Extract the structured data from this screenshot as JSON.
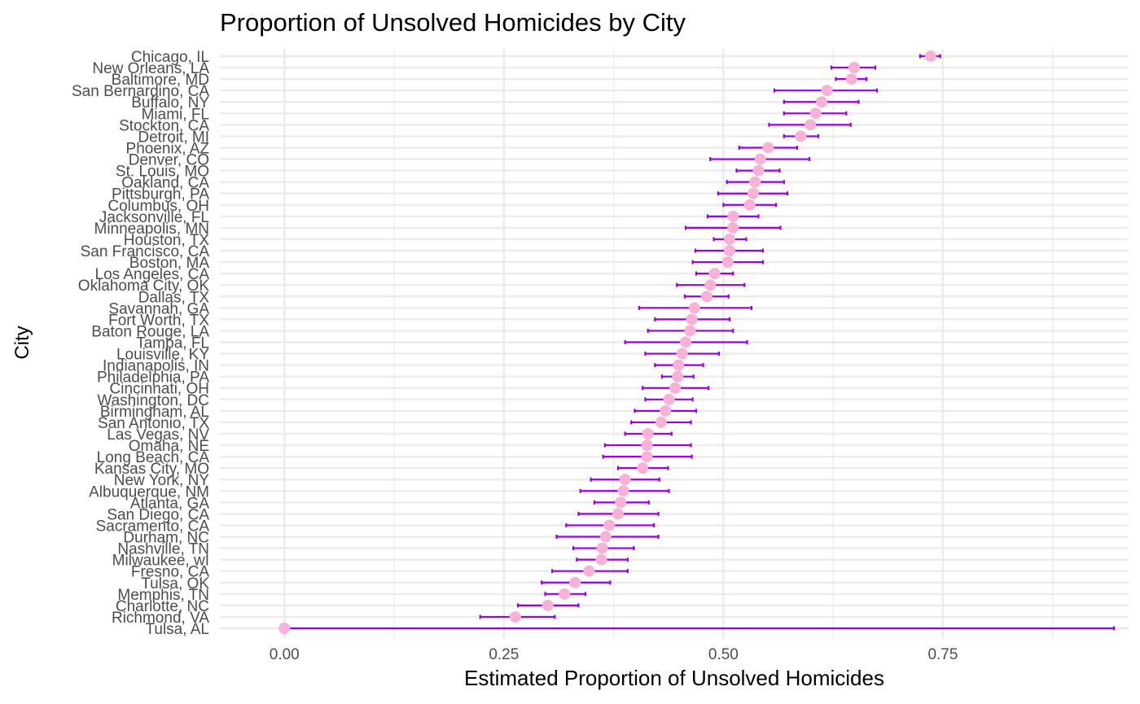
{
  "chart_data": {
    "type": "scatter",
    "title": "Proportion of Unsolved Homicides by City",
    "xlabel": "Estimated Proportion of Unsolved Homicides",
    "ylabel": "City",
    "xlim": [
      -0.0735,
      0.9615
    ],
    "x_ticks": [
      0.0,
      0.25,
      0.5,
      0.75
    ],
    "x_tick_labels": [
      "0.00",
      "0.25",
      "0.50",
      "0.75"
    ],
    "grid": true,
    "colors": {
      "point": "#F9B1D5",
      "errorbar": "#9B00E6",
      "grid": "#EBEBEB",
      "text": "#4D4D4D"
    },
    "cities": [
      {
        "city": "Chicago, IL",
        "estimate": 0.736,
        "lower": 0.724,
        "upper": 0.747
      },
      {
        "city": "New Orleans, LA",
        "estimate": 0.649,
        "lower": 0.623,
        "upper": 0.673
      },
      {
        "city": "Baltimore, MD",
        "estimate": 0.646,
        "lower": 0.628,
        "upper": 0.663
      },
      {
        "city": "San Bernardino, CA",
        "estimate": 0.618,
        "lower": 0.558,
        "upper": 0.675
      },
      {
        "city": "Buffalo, NY",
        "estimate": 0.612,
        "lower": 0.569,
        "upper": 0.654
      },
      {
        "city": "Miami, FL",
        "estimate": 0.605,
        "lower": 0.569,
        "upper": 0.64
      },
      {
        "city": "Stockton, CA",
        "estimate": 0.599,
        "lower": 0.552,
        "upper": 0.645
      },
      {
        "city": "Detroit, MI",
        "estimate": 0.588,
        "lower": 0.569,
        "upper": 0.608
      },
      {
        "city": "Phoenix, AZ",
        "estimate": 0.551,
        "lower": 0.518,
        "upper": 0.584
      },
      {
        "city": "Denver, CO",
        "estimate": 0.542,
        "lower": 0.485,
        "upper": 0.598
      },
      {
        "city": "St. Louis, MO",
        "estimate": 0.54,
        "lower": 0.515,
        "upper": 0.564
      },
      {
        "city": "Oakland, CA",
        "estimate": 0.536,
        "lower": 0.504,
        "upper": 0.569
      },
      {
        "city": "Pittsburgh, PA",
        "estimate": 0.534,
        "lower": 0.494,
        "upper": 0.573
      },
      {
        "city": "Columbus, OH",
        "estimate": 0.53,
        "lower": 0.5,
        "upper": 0.56
      },
      {
        "city": "Jacksonville, FL",
        "estimate": 0.511,
        "lower": 0.482,
        "upper": 0.54
      },
      {
        "city": "Minneapolis, MN",
        "estimate": 0.511,
        "lower": 0.457,
        "upper": 0.565
      },
      {
        "city": "Houston, TX",
        "estimate": 0.507,
        "lower": 0.489,
        "upper": 0.526
      },
      {
        "city": "San Francisco, CA",
        "estimate": 0.507,
        "lower": 0.468,
        "upper": 0.545
      },
      {
        "city": "Boston, MA",
        "estimate": 0.505,
        "lower": 0.465,
        "upper": 0.545
      },
      {
        "city": "Los Angeles, CA",
        "estimate": 0.49,
        "lower": 0.469,
        "upper": 0.511
      },
      {
        "city": "Oklahoma City, OK",
        "estimate": 0.485,
        "lower": 0.447,
        "upper": 0.524
      },
      {
        "city": "Dallas, TX",
        "estimate": 0.481,
        "lower": 0.456,
        "upper": 0.506
      },
      {
        "city": "Savannah, GA",
        "estimate": 0.467,
        "lower": 0.404,
        "upper": 0.532
      },
      {
        "city": "Fort Worth, TX",
        "estimate": 0.464,
        "lower": 0.422,
        "upper": 0.507
      },
      {
        "city": "Baton Rouge, LA",
        "estimate": 0.462,
        "lower": 0.414,
        "upper": 0.511
      },
      {
        "city": "Tampa, FL",
        "estimate": 0.457,
        "lower": 0.388,
        "upper": 0.527
      },
      {
        "city": "Louisville, KY",
        "estimate": 0.453,
        "lower": 0.411,
        "upper": 0.495
      },
      {
        "city": "Indianapolis, IN",
        "estimate": 0.449,
        "lower": 0.422,
        "upper": 0.477
      },
      {
        "city": "Philadelphia, PA",
        "estimate": 0.448,
        "lower": 0.43,
        "upper": 0.466
      },
      {
        "city": "Cincinnati, OH",
        "estimate": 0.445,
        "lower": 0.408,
        "upper": 0.483
      },
      {
        "city": "Washington, DC",
        "estimate": 0.438,
        "lower": 0.411,
        "upper": 0.465
      },
      {
        "city": "Birmingham, AL",
        "estimate": 0.434,
        "lower": 0.399,
        "upper": 0.469
      },
      {
        "city": "San Antonio, TX",
        "estimate": 0.429,
        "lower": 0.395,
        "upper": 0.463
      },
      {
        "city": "Las Vegas, NV",
        "estimate": 0.414,
        "lower": 0.388,
        "upper": 0.441
      },
      {
        "city": "Omaha, NE",
        "estimate": 0.413,
        "lower": 0.365,
        "upper": 0.463
      },
      {
        "city": "Long Beach, CA",
        "estimate": 0.413,
        "lower": 0.363,
        "upper": 0.464
      },
      {
        "city": "Kansas City, MO",
        "estimate": 0.408,
        "lower": 0.38,
        "upper": 0.437
      },
      {
        "city": "New York, NY",
        "estimate": 0.388,
        "lower": 0.349,
        "upper": 0.427
      },
      {
        "city": "Albuquerque, NM",
        "estimate": 0.386,
        "lower": 0.337,
        "upper": 0.438
      },
      {
        "city": "Atlanta, GA",
        "estimate": 0.383,
        "lower": 0.353,
        "upper": 0.415
      },
      {
        "city": "San Diego, CA",
        "estimate": 0.38,
        "lower": 0.335,
        "upper": 0.426
      },
      {
        "city": "Sacramento, CA",
        "estimate": 0.37,
        "lower": 0.321,
        "upper": 0.421
      },
      {
        "city": "Durham, NC",
        "estimate": 0.366,
        "lower": 0.31,
        "upper": 0.426
      },
      {
        "city": "Nashville, TN",
        "estimate": 0.362,
        "lower": 0.329,
        "upper": 0.398
      },
      {
        "city": "Milwaukee, wI",
        "estimate": 0.361,
        "lower": 0.333,
        "upper": 0.391
      },
      {
        "city": "Fresno, CA",
        "estimate": 0.347,
        "lower": 0.305,
        "upper": 0.391
      },
      {
        "city": "Tulsa, OK",
        "estimate": 0.331,
        "lower": 0.293,
        "upper": 0.371
      },
      {
        "city": "Memphis, TN",
        "estimate": 0.319,
        "lower": 0.297,
        "upper": 0.343
      },
      {
        "city": "Charlotte, NC",
        "estimate": 0.3,
        "lower": 0.266,
        "upper": 0.335
      },
      {
        "city": "Richmond, VA",
        "estimate": 0.263,
        "lower": 0.223,
        "upper": 0.308
      },
      {
        "city": "Tulsa, AL",
        "estimate": 0.0,
        "lower": 0.0,
        "upper": 0.945
      }
    ]
  }
}
